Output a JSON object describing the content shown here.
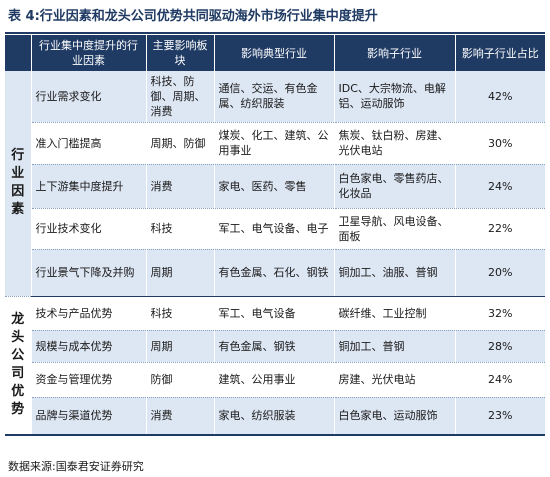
{
  "title": "表 4:行业因素和龙头公司优势共同驱动海外市场行业集中度提升",
  "table": {
    "headers": [
      "",
      "行业集中度提升的行业因素",
      "主要影响板块",
      "影响典型行业",
      "影响子行业",
      "影响子行业占比"
    ],
    "groups": [
      {
        "label": "行业因素",
        "rows": [
          {
            "factor": "行业需求变化",
            "sector": "科技、防御、周期、消费",
            "industries": "通信、交运、有色金属、纺织服装",
            "subindustries": "IDC、大宗物流、电解铝、运动服饰",
            "share": "42%"
          },
          {
            "factor": "准入门槛提高",
            "sector": "周期、防御",
            "industries": "煤炭、化工、建筑、公用事业",
            "subindustries": "焦炭、钛白粉、房建、光伏电站",
            "share": "30%"
          },
          {
            "factor": "上下游集中度提升",
            "sector": "消费",
            "industries": "家电、医药、零售",
            "subindustries": "白色家电、零售药店、化妆品",
            "share": "24%"
          },
          {
            "factor": "行业技术变化",
            "sector": "科技",
            "industries": "军工、电气设备、电子",
            "subindustries": "卫星导航、风电设备、面板",
            "share": "22%"
          },
          {
            "factor": "行业景气下降及并购",
            "sector": "周期",
            "industries": "有色金属、石化、钢铁",
            "subindustries": "铜加工、油服、普钢",
            "share": "20%"
          }
        ]
      },
      {
        "label": "龙头公司优势",
        "rows": [
          {
            "factor": "技术与产品优势",
            "sector": "科技",
            "industries": "军工、电气设备",
            "subindustries": "碳纤维、工业控制",
            "share": "32%"
          },
          {
            "factor": "规模与成本优势",
            "sector": "周期",
            "industries": "有色金属、钢铁",
            "subindustries": "铜加工、普钢",
            "share": "28%"
          },
          {
            "factor": "资金与管理优势",
            "sector": "防御",
            "industries": "建筑、公用事业",
            "subindustries": "房建、光伏电站",
            "share": "24%"
          },
          {
            "factor": "品牌与渠道优势",
            "sector": "消费",
            "industries": "家电、纺织服装",
            "subindustries": "白色家电、运动服饰",
            "share": "23%"
          }
        ]
      }
    ]
  },
  "source": "数据来源:国泰君安证券研究",
  "colors": {
    "header_bg": "#1f3a63",
    "band_bg": "#dde6f3"
  }
}
